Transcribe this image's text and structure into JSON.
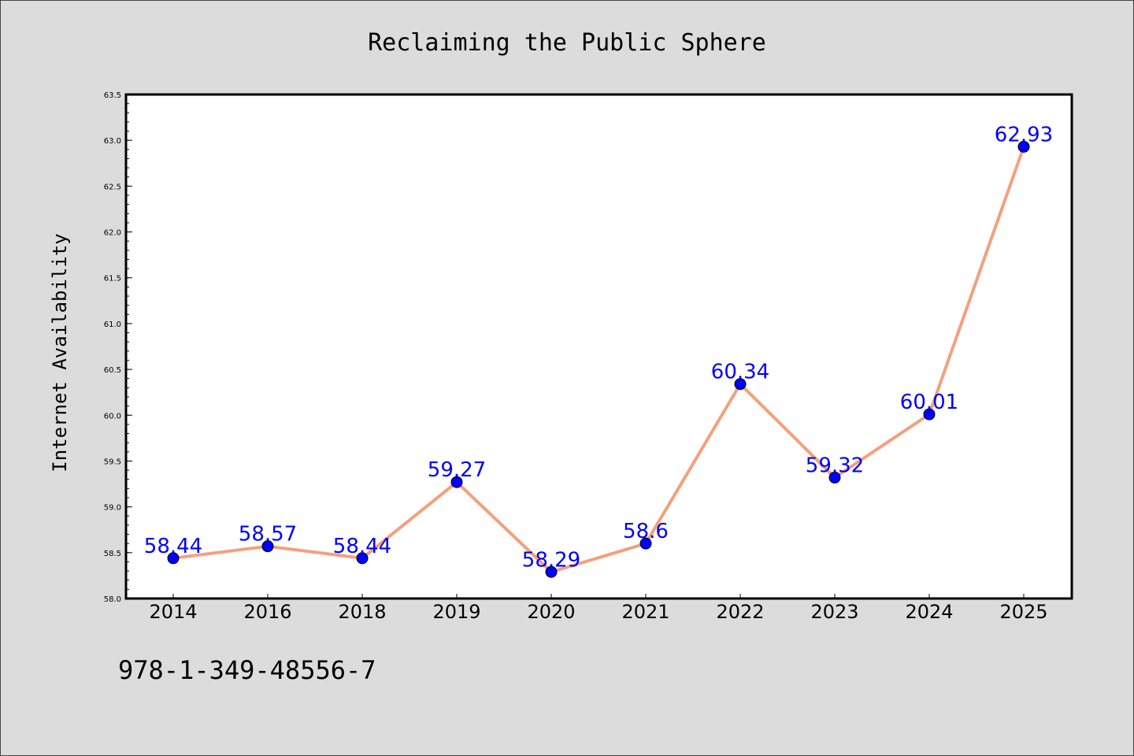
{
  "chart_data": {
    "type": "line",
    "title": "Reclaiming the Public Sphere",
    "xlabel": "",
    "ylabel": "Internet Availability",
    "categories": [
      "2014",
      "2016",
      "2018",
      "2019",
      "2020",
      "2021",
      "2022",
      "2023",
      "2024",
      "2025"
    ],
    "series": [
      {
        "values": [
          58.44,
          58.57,
          58.44,
          59.27,
          58.29,
          58.6,
          60.34,
          59.32,
          60.01,
          62.93
        ],
        "labels": [
          "58.44",
          "58.57",
          "58.44",
          "59.27",
          "58.29",
          "58.6",
          "60.34",
          "59.32",
          "60.01",
          "62.93"
        ]
      }
    ],
    "ylim": [
      58.0,
      63.5
    ],
    "yticks": [
      "58.0",
      "58.5",
      "59.0",
      "59.5",
      "60.0",
      "60.5",
      "61.0",
      "61.5",
      "62.0",
      "62.5",
      "63.0",
      "63.5"
    ],
    "grid": false,
    "legend": "none",
    "colors": {
      "line": "#f4a07c",
      "marker": "#0000ff",
      "data_label": "#0000ff",
      "background": "#dcdcdc",
      "plot_area": "#ffffff"
    }
  },
  "footer": {
    "isbn": "978-1-349-48556-7"
  }
}
